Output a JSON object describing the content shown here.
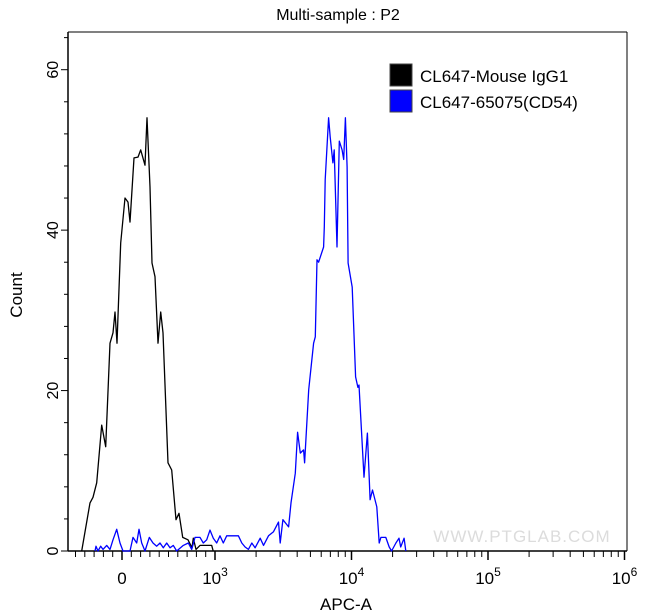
{
  "chart_data": {
    "type": "line",
    "title": "Multi-sample : P2",
    "xlabel": "APC-A",
    "ylabel": "Count",
    "x_scale": "biexponential",
    "xlim": [
      -580,
      1000000
    ],
    "ylim": [
      0,
      64.7
    ],
    "x_ticks": [
      {
        "value": 0,
        "base": "0",
        "exp": ""
      },
      {
        "value": 1000,
        "base": "10",
        "exp": "3"
      },
      {
        "value": 10000,
        "base": "10",
        "exp": "4"
      },
      {
        "value": 100000,
        "base": "10",
        "exp": "5"
      },
      {
        "value": 1000000,
        "base": "10",
        "exp": "6"
      }
    ],
    "y_ticks": [
      "0",
      "20",
      "40",
      "60"
    ],
    "grid": false,
    "legend_position": "top-right",
    "watermark": "WWW.PTGLAB.COM",
    "series": [
      {
        "name": "CL647-Mouse IgG1",
        "color": "#000000",
        "points": [
          [
            -433,
            0
          ],
          [
            -344,
            6.0
          ],
          [
            -312,
            6.7
          ],
          [
            -272,
            8.5
          ],
          [
            -218,
            15.7
          ],
          [
            -175,
            13.0
          ],
          [
            -129,
            25.9
          ],
          [
            -97,
            27.2
          ],
          [
            -75,
            29.8
          ],
          [
            -54,
            25.9
          ],
          [
            -14,
            38.4
          ],
          [
            32,
            44.0
          ],
          [
            65,
            43.5
          ],
          [
            86,
            41.0
          ],
          [
            129,
            49.0
          ],
          [
            172,
            49.1
          ],
          [
            201,
            50.0
          ],
          [
            247,
            48.1
          ],
          [
            269,
            54.0
          ],
          [
            301,
            45.4
          ],
          [
            323,
            35.9
          ],
          [
            355,
            34.2
          ],
          [
            387,
            25.9
          ],
          [
            416,
            29.8
          ],
          [
            441,
            27.2
          ],
          [
            495,
            11.0
          ],
          [
            534,
            10.1
          ],
          [
            581,
            3.9
          ],
          [
            613,
            4.7
          ],
          [
            653,
            1.7
          ],
          [
            710,
            1.4
          ],
          [
            753,
            0.4
          ],
          [
            767,
            1.6
          ],
          [
            796,
            0.2
          ],
          [
            839,
            0.7
          ],
          [
            964,
            0.7
          ],
          [
            981,
            0
          ]
        ]
      },
      {
        "name": "CL647-65075(CD54)",
        "color": "#0000ff",
        "points": [
          [
            -290,
            0
          ],
          [
            -280,
            0.6
          ],
          [
            -258,
            0
          ],
          [
            -229,
            0.6
          ],
          [
            -204,
            0.2
          ],
          [
            -165,
            0.7
          ],
          [
            -129,
            0.2
          ],
          [
            -97,
            1.4
          ],
          [
            -57,
            2.7
          ],
          [
            -22,
            1.0
          ],
          [
            11,
            0
          ],
          [
            86,
            0
          ],
          [
            118,
            1.7
          ],
          [
            158,
            1.0
          ],
          [
            183,
            2.7
          ],
          [
            212,
            1.0
          ],
          [
            247,
            0
          ],
          [
            294,
            1.7
          ],
          [
            333,
            1.0
          ],
          [
            373,
            0.6
          ],
          [
            409,
            1.0
          ],
          [
            444,
            0.4
          ],
          [
            481,
            1.0
          ],
          [
            516,
            0.4
          ],
          [
            552,
            0.7
          ],
          [
            588,
            0
          ],
          [
            659,
            0.7
          ],
          [
            713,
            1.0
          ],
          [
            749,
            0.2
          ],
          [
            785,
            1.7
          ],
          [
            839,
            1.7
          ],
          [
            874,
            1.0
          ],
          [
            911,
            1.4
          ],
          [
            946,
            2.6
          ],
          [
            982,
            1.6
          ],
          [
            1029,
            1.0
          ],
          [
            1088,
            1.9
          ],
          [
            1151,
            1.0
          ],
          [
            1219,
            1.9
          ],
          [
            1363,
            1.9
          ],
          [
            1483,
            1.9
          ],
          [
            1572,
            1.0
          ],
          [
            1662,
            0.5
          ],
          [
            1757,
            0.2
          ],
          [
            1861,
            1.0
          ],
          [
            1968,
            0.4
          ],
          [
            2142,
            1.6
          ],
          [
            2266,
            0.7
          ],
          [
            2465,
            1.9
          ],
          [
            2683,
            2.4
          ],
          [
            2920,
            3.6
          ],
          [
            3004,
            1.0
          ],
          [
            3145,
            3.9
          ],
          [
            3459,
            3.0
          ],
          [
            3603,
            6.0
          ],
          [
            3874,
            9.7
          ],
          [
            4028,
            14.8
          ],
          [
            4217,
            12.2
          ],
          [
            4460,
            12.6
          ],
          [
            4536,
            11.0
          ],
          [
            4855,
            20.1
          ],
          [
            5280,
            25.9
          ],
          [
            5432,
            26.7
          ],
          [
            5589,
            36.3
          ],
          [
            5742,
            36.0
          ],
          [
            6241,
            37.9
          ],
          [
            6315,
            40.4
          ],
          [
            6421,
            46.3
          ],
          [
            6790,
            54.0
          ],
          [
            6987,
            51.6
          ],
          [
            7313,
            48.4
          ],
          [
            7474,
            50.0
          ],
          [
            7826,
            37.9
          ],
          [
            8143,
            51.1
          ],
          [
            8528,
            50.0
          ],
          [
            8765,
            48.8
          ],
          [
            9022,
            54.0
          ],
          [
            9286,
            47.9
          ],
          [
            9446,
            35.9
          ],
          [
            10120,
            32.9
          ],
          [
            10710,
            21.7
          ],
          [
            11140,
            20.4
          ],
          [
            11340,
            20.7
          ],
          [
            12350,
            9.2
          ],
          [
            13080,
            14.7
          ],
          [
            13680,
            6.4
          ],
          [
            14260,
            7.6
          ],
          [
            15330,
            5.5
          ],
          [
            15950,
            1.0
          ],
          [
            16420,
            1.7
          ],
          [
            17850,
            1.7
          ],
          [
            18880,
            0.5
          ],
          [
            19670,
            0
          ],
          [
            21150,
            1.0
          ],
          [
            22270,
            1.6
          ],
          [
            22920,
            0.5
          ],
          [
            24300,
            1.6
          ],
          [
            24980,
            0
          ]
        ]
      }
    ]
  }
}
